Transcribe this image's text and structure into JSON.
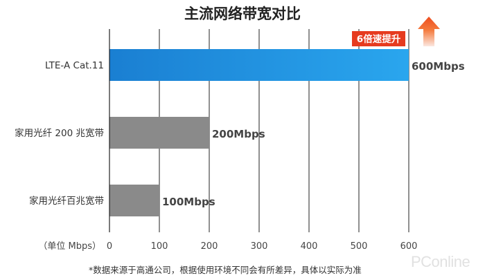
{
  "chart_data": {
    "type": "bar",
    "orientation": "horizontal",
    "title": "主流网络带宽对比",
    "xlabel": "（单位 Mbps）",
    "xlim": [
      0,
      600
    ],
    "xticks": [
      0,
      100,
      200,
      300,
      400,
      500,
      600
    ],
    "grid": true,
    "categories": [
      "LTE-A Cat.11",
      "家用光纤 200 兆宽带",
      "家用光纤百兆宽带"
    ],
    "values": [
      600,
      200,
      100
    ],
    "value_labels": [
      "600Mbps",
      "200Mbps",
      "100Mbps"
    ],
    "bar_colors": [
      "#1e8fde",
      "#8a8a8a",
      "#8a8a8a"
    ],
    "annotation": "6倍速提升",
    "annotation_color": "#e63b1f"
  },
  "footnote": "*数据来源于高通公司，根据使用环境不同会有所差异，具体以实际为准",
  "watermark": "PConline"
}
